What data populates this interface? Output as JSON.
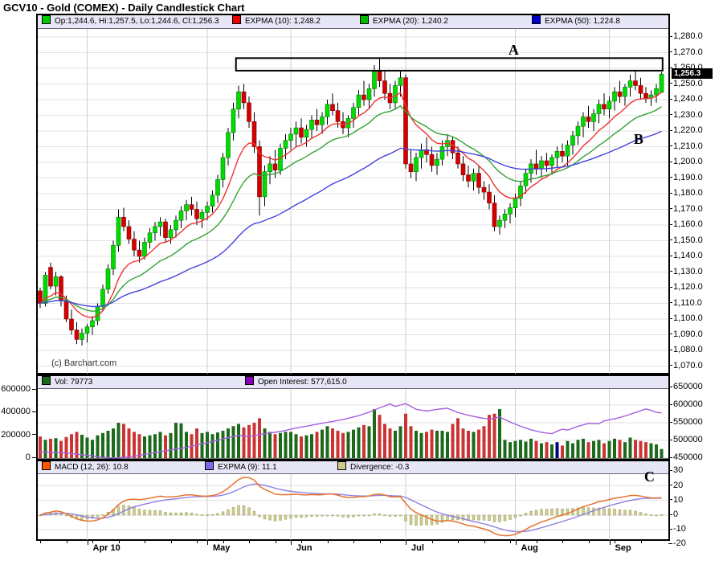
{
  "title": "GCV10 - Gold (COMEX) - Daily Candlestick Chart",
  "watermark": "(c) Barchart.com",
  "price_panel": {
    "legend": [
      {
        "color": "#00CC00",
        "label": "Op:1,244.6, Hi:1,257.5, Lo:1,244.6, Cl:1,256.3"
      },
      {
        "color": "#EE0000",
        "label": "EXPMA (10): 1,248.2"
      },
      {
        "color": "#00BB00",
        "label": "EXPMA (20): 1,240.2"
      },
      {
        "color": "#0000CC",
        "label": "EXPMA (50): 1,224.8"
      }
    ],
    "y_axis": {
      "min": 1070,
      "max": 1280,
      "step": 10,
      "current_value": 1256.3,
      "current_label": "1,256.3"
    }
  },
  "volume_panel": {
    "legend": [
      {
        "color": "#1B691B",
        "label": "Vol: 79773"
      },
      {
        "color": "#8800BB",
        "label": "Open Interest: 577,615.0"
      }
    ],
    "left_axis": [
      600000,
      400000,
      200000,
      0
    ],
    "right_axis": [
      650000,
      600000,
      550000,
      500000,
      450000
    ]
  },
  "macd_panel": {
    "legend": [
      {
        "color": "#FF5500",
        "label": "MACD (12, 26): 10.8"
      },
      {
        "color": "#7B68EE",
        "label": "EXPMA (9): 11.1"
      },
      {
        "color": "#CCCC88",
        "label": "Divergence: -0.3"
      }
    ],
    "right_axis": [
      30,
      20,
      10,
      0,
      -10,
      -20
    ]
  },
  "x_axis": {
    "months": [
      {
        "label": "Apr 10",
        "day": 9
      },
      {
        "label": "May",
        "day": 32
      },
      {
        "label": "Jun",
        "day": 48
      },
      {
        "label": "Jul",
        "day": 70
      },
      {
        "label": "Aug",
        "day": 91
      },
      {
        "label": "Sep",
        "day": 109
      }
    ]
  },
  "annotations": {
    "resistance_box": {
      "day_from": 37.5,
      "day_to": 119.2,
      "price_top": 1266.5,
      "price_bottom": 1258.5
    },
    "labels": [
      {
        "label": "A",
        "panel": "price",
        "day": 90.6,
        "price": 1271
      },
      {
        "label": "B",
        "panel": "price",
        "day": 114.6,
        "price": 1214
      },
      {
        "label": "C",
        "panel": "macd",
        "day": 116.6,
        "value": 25
      }
    ]
  },
  "colors": {
    "candle_up": "#00DC00",
    "candle_up_stroke": "#007700",
    "candle_down": "#D40000",
    "candle_down_stroke": "#7A0000",
    "wick": "#000000",
    "ema10": "#EE3333",
    "ema20": "#33A333",
    "ema50": "#4444DD",
    "vol_up": "#1B691B",
    "vol_down": "#CC3333",
    "open_interest": "#A560E0",
    "macd_line": "#E5732F",
    "signal_line": "#8F80E0",
    "div_fill": "#CDCD90",
    "div_stroke": "#99995C",
    "grid_h": "#E2E2E2",
    "grid_v": "#CFCFCF"
  },
  "chart_data": {
    "type": "candlestick",
    "title": "GCV10 - Gold (COMEX) - Daily Candlestick Chart",
    "days": 120,
    "price_axis": {
      "min": 1070,
      "max": 1280,
      "step": 10
    },
    "indicators": {
      "ema_periods": [
        10,
        20,
        50
      ],
      "macd_fast": 12,
      "macd_slow": 26,
      "macd_signal": 9
    },
    "candles": [
      [
        1118,
        1120,
        1107,
        1110
      ],
      [
        1110,
        1130,
        1108,
        1128
      ],
      [
        1133,
        1136,
        1119,
        1121
      ],
      [
        1121,
        1130,
        1115,
        1127
      ],
      [
        1127,
        1128,
        1108,
        1112
      ],
      [
        1112,
        1115,
        1098,
        1100
      ],
      [
        1100,
        1106,
        1090,
        1093
      ],
      [
        1093,
        1098,
        1084,
        1087
      ],
      [
        1087,
        1094,
        1083,
        1091
      ],
      [
        1091,
        1097,
        1085,
        1095
      ],
      [
        1095,
        1102,
        1090,
        1099
      ],
      [
        1099,
        1110,
        1096,
        1108
      ],
      [
        1108,
        1122,
        1105,
        1119
      ],
      [
        1119,
        1135,
        1116,
        1132
      ],
      [
        1132,
        1150,
        1128,
        1147
      ],
      [
        1147,
        1170,
        1143,
        1165
      ],
      [
        1165,
        1171,
        1156,
        1159
      ],
      [
        1159,
        1163,
        1148,
        1151
      ],
      [
        1151,
        1156,
        1140,
        1144
      ],
      [
        1144,
        1150,
        1136,
        1140
      ],
      [
        1140,
        1152,
        1138,
        1149
      ],
      [
        1149,
        1158,
        1145,
        1155
      ],
      [
        1155,
        1162,
        1150,
        1159
      ],
      [
        1159,
        1165,
        1153,
        1162
      ],
      [
        1162,
        1164,
        1149,
        1152
      ],
      [
        1152,
        1160,
        1148,
        1157
      ],
      [
        1157,
        1166,
        1152,
        1163
      ],
      [
        1163,
        1172,
        1158,
        1169
      ],
      [
        1169,
        1176,
        1163,
        1173
      ],
      [
        1173,
        1178,
        1166,
        1170
      ],
      [
        1170,
        1175,
        1160,
        1164
      ],
      [
        1164,
        1170,
        1158,
        1168
      ],
      [
        1168,
        1175,
        1163,
        1172
      ],
      [
        1172,
        1182,
        1168,
        1179
      ],
      [
        1179,
        1192,
        1174,
        1189
      ],
      [
        1189,
        1206,
        1184,
        1203
      ],
      [
        1203,
        1222,
        1198,
        1219
      ],
      [
        1219,
        1238,
        1214,
        1234
      ],
      [
        1234,
        1249,
        1228,
        1245
      ],
      [
        1245,
        1250,
        1234,
        1238
      ],
      [
        1238,
        1242,
        1222,
        1226
      ],
      [
        1226,
        1232,
        1206,
        1210
      ],
      [
        1210,
        1214,
        1166,
        1178
      ],
      [
        1178,
        1198,
        1172,
        1194
      ],
      [
        1194,
        1204,
        1186,
        1199
      ],
      [
        1199,
        1208,
        1190,
        1195
      ],
      [
        1195,
        1212,
        1192,
        1209
      ],
      [
        1209,
        1218,
        1202,
        1214
      ],
      [
        1214,
        1222,
        1208,
        1218
      ],
      [
        1218,
        1226,
        1210,
        1222
      ],
      [
        1222,
        1228,
        1212,
        1216
      ],
      [
        1216,
        1224,
        1210,
        1221
      ],
      [
        1221,
        1230,
        1215,
        1227
      ],
      [
        1227,
        1234,
        1220,
        1224
      ],
      [
        1224,
        1232,
        1218,
        1229
      ],
      [
        1229,
        1240,
        1224,
        1237
      ],
      [
        1237,
        1244,
        1230,
        1233
      ],
      [
        1233,
        1238,
        1222,
        1226
      ],
      [
        1226,
        1232,
        1218,
        1222
      ],
      [
        1222,
        1230,
        1216,
        1228
      ],
      [
        1228,
        1238,
        1222,
        1235
      ],
      [
        1235,
        1246,
        1230,
        1243
      ],
      [
        1243,
        1252,
        1236,
        1240
      ],
      [
        1240,
        1250,
        1234,
        1247
      ],
      [
        1247,
        1262,
        1242,
        1258
      ],
      [
        1258,
        1266,
        1248,
        1252
      ],
      [
        1252,
        1258,
        1240,
        1244
      ],
      [
        1244,
        1250,
        1234,
        1238
      ],
      [
        1238,
        1252,
        1234,
        1249
      ],
      [
        1249,
        1258,
        1242,
        1254
      ],
      [
        1254,
        1256,
        1196,
        1199
      ],
      [
        1199,
        1208,
        1190,
        1194
      ],
      [
        1194,
        1206,
        1188,
        1203
      ],
      [
        1203,
        1212,
        1196,
        1208
      ],
      [
        1208,
        1216,
        1200,
        1205
      ],
      [
        1205,
        1210,
        1194,
        1198
      ],
      [
        1198,
        1206,
        1192,
        1202
      ],
      [
        1202,
        1214,
        1198,
        1210
      ],
      [
        1210,
        1218,
        1204,
        1214
      ],
      [
        1214,
        1216,
        1202,
        1206
      ],
      [
        1206,
        1210,
        1196,
        1199
      ],
      [
        1199,
        1204,
        1188,
        1192
      ],
      [
        1192,
        1198,
        1184,
        1188
      ],
      [
        1188,
        1196,
        1182,
        1193
      ],
      [
        1193,
        1198,
        1180,
        1184
      ],
      [
        1184,
        1188,
        1176,
        1181
      ],
      [
        1181,
        1186,
        1170,
        1174
      ],
      [
        1174,
        1179,
        1156,
        1159
      ],
      [
        1159,
        1166,
        1154,
        1163
      ],
      [
        1163,
        1170,
        1158,
        1167
      ],
      [
        1167,
        1174,
        1161,
        1171
      ],
      [
        1171,
        1180,
        1165,
        1177
      ],
      [
        1177,
        1188,
        1172,
        1185
      ],
      [
        1185,
        1196,
        1180,
        1193
      ],
      [
        1193,
        1202,
        1187,
        1199
      ],
      [
        1199,
        1208,
        1192,
        1196
      ],
      [
        1196,
        1204,
        1190,
        1201
      ],
      [
        1201,
        1206,
        1194,
        1198
      ],
      [
        1198,
        1205,
        1192,
        1203
      ],
      [
        1203,
        1210,
        1197,
        1207
      ],
      [
        1207,
        1212,
        1200,
        1204
      ],
      [
        1204,
        1214,
        1198,
        1211
      ],
      [
        1211,
        1220,
        1205,
        1217
      ],
      [
        1217,
        1226,
        1211,
        1223
      ],
      [
        1223,
        1232,
        1216,
        1229
      ],
      [
        1229,
        1236,
        1222,
        1226
      ],
      [
        1226,
        1234,
        1220,
        1231
      ],
      [
        1231,
        1240,
        1225,
        1237
      ],
      [
        1237,
        1244,
        1230,
        1234
      ],
      [
        1234,
        1242,
        1228,
        1239
      ],
      [
        1239,
        1248,
        1233,
        1245
      ],
      [
        1245,
        1252,
        1238,
        1242
      ],
      [
        1242,
        1250,
        1236,
        1248
      ],
      [
        1248,
        1256,
        1242,
        1252
      ],
      [
        1252,
        1259,
        1246,
        1249
      ],
      [
        1249,
        1254,
        1240,
        1244
      ],
      [
        1244,
        1248,
        1238,
        1241
      ],
      [
        1241,
        1246,
        1236,
        1243
      ],
      [
        1243,
        1250,
        1238,
        1247
      ],
      [
        1244.6,
        1257.5,
        1244.6,
        1256.3
      ]
    ],
    "volumes": [
      190000,
      160000,
      170000,
      175000,
      150000,
      185000,
      210000,
      230000,
      205000,
      180000,
      160000,
      200000,
      220000,
      240000,
      260000,
      310000,
      300000,
      260000,
      230000,
      210000,
      190000,
      200000,
      210000,
      230000,
      200000,
      220000,
      310000,
      305000,
      230000,
      210000,
      260000,
      220000,
      230000,
      210000,
      225000,
      240000,
      260000,
      280000,
      300000,
      270000,
      290000,
      310000,
      350000,
      260000,
      230000,
      210000,
      220000,
      230000,
      230000,
      210000,
      190000,
      200000,
      210000,
      230000,
      250000,
      280000,
      260000,
      240000,
      220000,
      230000,
      250000,
      270000,
      290000,
      280000,
      430000,
      380000,
      300000,
      260000,
      240000,
      280000,
      390000,
      280000,
      240000,
      220000,
      230000,
      250000,
      240000,
      240000,
      230000,
      300000,
      350000,
      260000,
      240000,
      230000,
      250000,
      280000,
      380000,
      390000,
      430000,
      160000,
      140000,
      150000,
      160000,
      145000,
      170000,
      150000,
      130000,
      140000,
      120000,
      140000,
      110000,
      150000,
      130000,
      160000,
      170000,
      140000,
      150000,
      160000,
      130000,
      150000,
      170000,
      160000,
      140000,
      180000,
      160000,
      150000,
      140000,
      130000,
      120000,
      79773
    ],
    "volume_color_override": {
      "99": "#000080"
    },
    "open_interest_points": [
      [
        0,
        468000
      ],
      [
        5,
        464000
      ],
      [
        9,
        458000
      ],
      [
        12,
        452000
      ],
      [
        14,
        450000
      ],
      [
        17,
        453000
      ],
      [
        21,
        463000
      ],
      [
        25,
        473000
      ],
      [
        28,
        480000
      ],
      [
        31,
        490000
      ],
      [
        34,
        500000
      ],
      [
        36,
        508000
      ],
      [
        38,
        514000
      ],
      [
        40,
        511000
      ],
      [
        43,
        519000
      ],
      [
        46,
        525000
      ],
      [
        49,
        535000
      ],
      [
        52,
        543000
      ],
      [
        55,
        551000
      ],
      [
        58,
        559000
      ],
      [
        61,
        570000
      ],
      [
        63,
        580000
      ],
      [
        65,
        592000
      ],
      [
        67,
        603000
      ],
      [
        68,
        596000
      ],
      [
        70,
        604000
      ],
      [
        72,
        588000
      ],
      [
        74,
        583000
      ],
      [
        76,
        588000
      ],
      [
        78,
        591000
      ],
      [
        80,
        579000
      ],
      [
        82,
        571000
      ],
      [
        84,
        565000
      ],
      [
        86,
        560000
      ],
      [
        88,
        566000
      ],
      [
        90,
        552000
      ],
      [
        92,
        540000
      ],
      [
        94,
        530000
      ],
      [
        96,
        523000
      ],
      [
        98,
        519000
      ],
      [
        99,
        526000
      ],
      [
        100,
        532000
      ],
      [
        101,
        529000
      ],
      [
        103,
        540000
      ],
      [
        105,
        548000
      ],
      [
        107,
        547000
      ],
      [
        108,
        555000
      ],
      [
        110,
        561000
      ],
      [
        112,
        569000
      ],
      [
        114,
        579000
      ],
      [
        116,
        589000
      ],
      [
        117,
        585000
      ],
      [
        118,
        579000
      ],
      [
        119,
        577615
      ]
    ]
  }
}
